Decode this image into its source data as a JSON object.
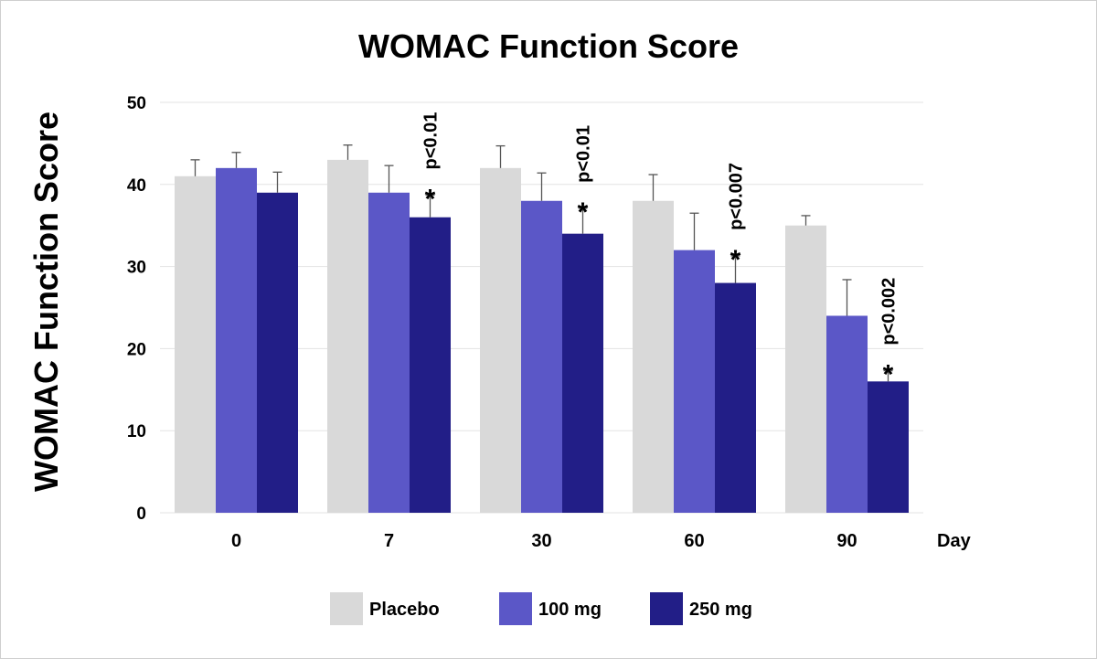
{
  "chart_data": {
    "type": "bar",
    "title": "WOMAC Function Score",
    "ylabel": "WOMAC Function Score",
    "xlabel": "Day",
    "categories": [
      "0",
      "7",
      "30",
      "60",
      "90"
    ],
    "yticks": [
      "0",
      "10",
      "20",
      "30",
      "40",
      "50"
    ],
    "ylim": [
      0,
      50
    ],
    "grid": true,
    "series": [
      {
        "name": "Placebo",
        "color": "#d9d9d9",
        "values": [
          41,
          43,
          42,
          38,
          35
        ],
        "errors": [
          2.0,
          1.8,
          2.7,
          3.2,
          1.2
        ]
      },
      {
        "name": "100 mg",
        "color": "#5b57c7",
        "values": [
          42,
          39,
          38,
          32,
          24
        ],
        "errors": [
          1.9,
          3.3,
          3.4,
          4.5,
          4.4
        ]
      },
      {
        "name": "250 mg",
        "color": "#221e87",
        "values": [
          39,
          36,
          34,
          28,
          16
        ],
        "errors": [
          2.5,
          2.7,
          3.1,
          3.3,
          1.3
        ]
      }
    ],
    "annotations": [
      {
        "category": "7",
        "series": "250 mg",
        "marker": "*",
        "text": "p<0.01"
      },
      {
        "category": "30",
        "series": "250 mg",
        "marker": "*",
        "text": "p<0.01"
      },
      {
        "category": "60",
        "series": "250 mg",
        "marker": "*",
        "text": "p<0.007"
      },
      {
        "category": "90",
        "series": "250 mg",
        "marker": "*",
        "text": "p<0.002"
      }
    ],
    "legend": {
      "placement": "bottom-center",
      "items": [
        "Placebo",
        "100 mg",
        "250 mg"
      ]
    }
  }
}
